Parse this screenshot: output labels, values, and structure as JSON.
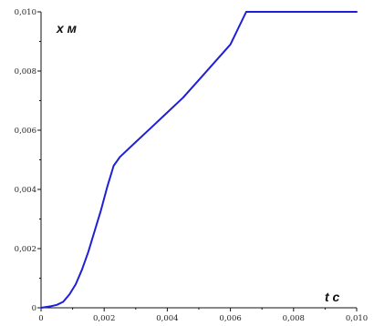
{
  "chart_data": {
    "type": "line",
    "xlabel": "t c",
    "ylabel": "x м",
    "xlim": [
      0,
      0.01
    ],
    "ylim": [
      0,
      0.01
    ],
    "x_ticks": [
      "0",
      "0,002",
      "0,004",
      "0,006",
      "0,008",
      "0,010"
    ],
    "y_ticks": [
      "0",
      "0,002",
      "0,004",
      "0,006",
      "0,008",
      "0,010"
    ],
    "line_color": "#1f1fd6",
    "grid": false,
    "series": [
      {
        "x": [
          0,
          0.0003,
          0.0005,
          0.0007,
          0.0009,
          0.0011,
          0.0013,
          0.0015,
          0.0017,
          0.0019,
          0.0021,
          0.0023,
          0.0025,
          0.003,
          0.0035,
          0.004,
          0.0045,
          0.005,
          0.0055,
          0.006,
          0.0065,
          0.007,
          0.008,
          0.009,
          0.01
        ],
        "y": [
          0,
          5e-05,
          0.0001,
          0.0002,
          0.00045,
          0.0008,
          0.0013,
          0.0019,
          0.0026,
          0.0033,
          0.0041,
          0.0048,
          0.0051,
          0.0056,
          0.0061,
          0.0066,
          0.0071,
          0.0077,
          0.0083,
          0.0089,
          0.01,
          0.01,
          0.01,
          0.01,
          0.01
        ]
      }
    ]
  }
}
